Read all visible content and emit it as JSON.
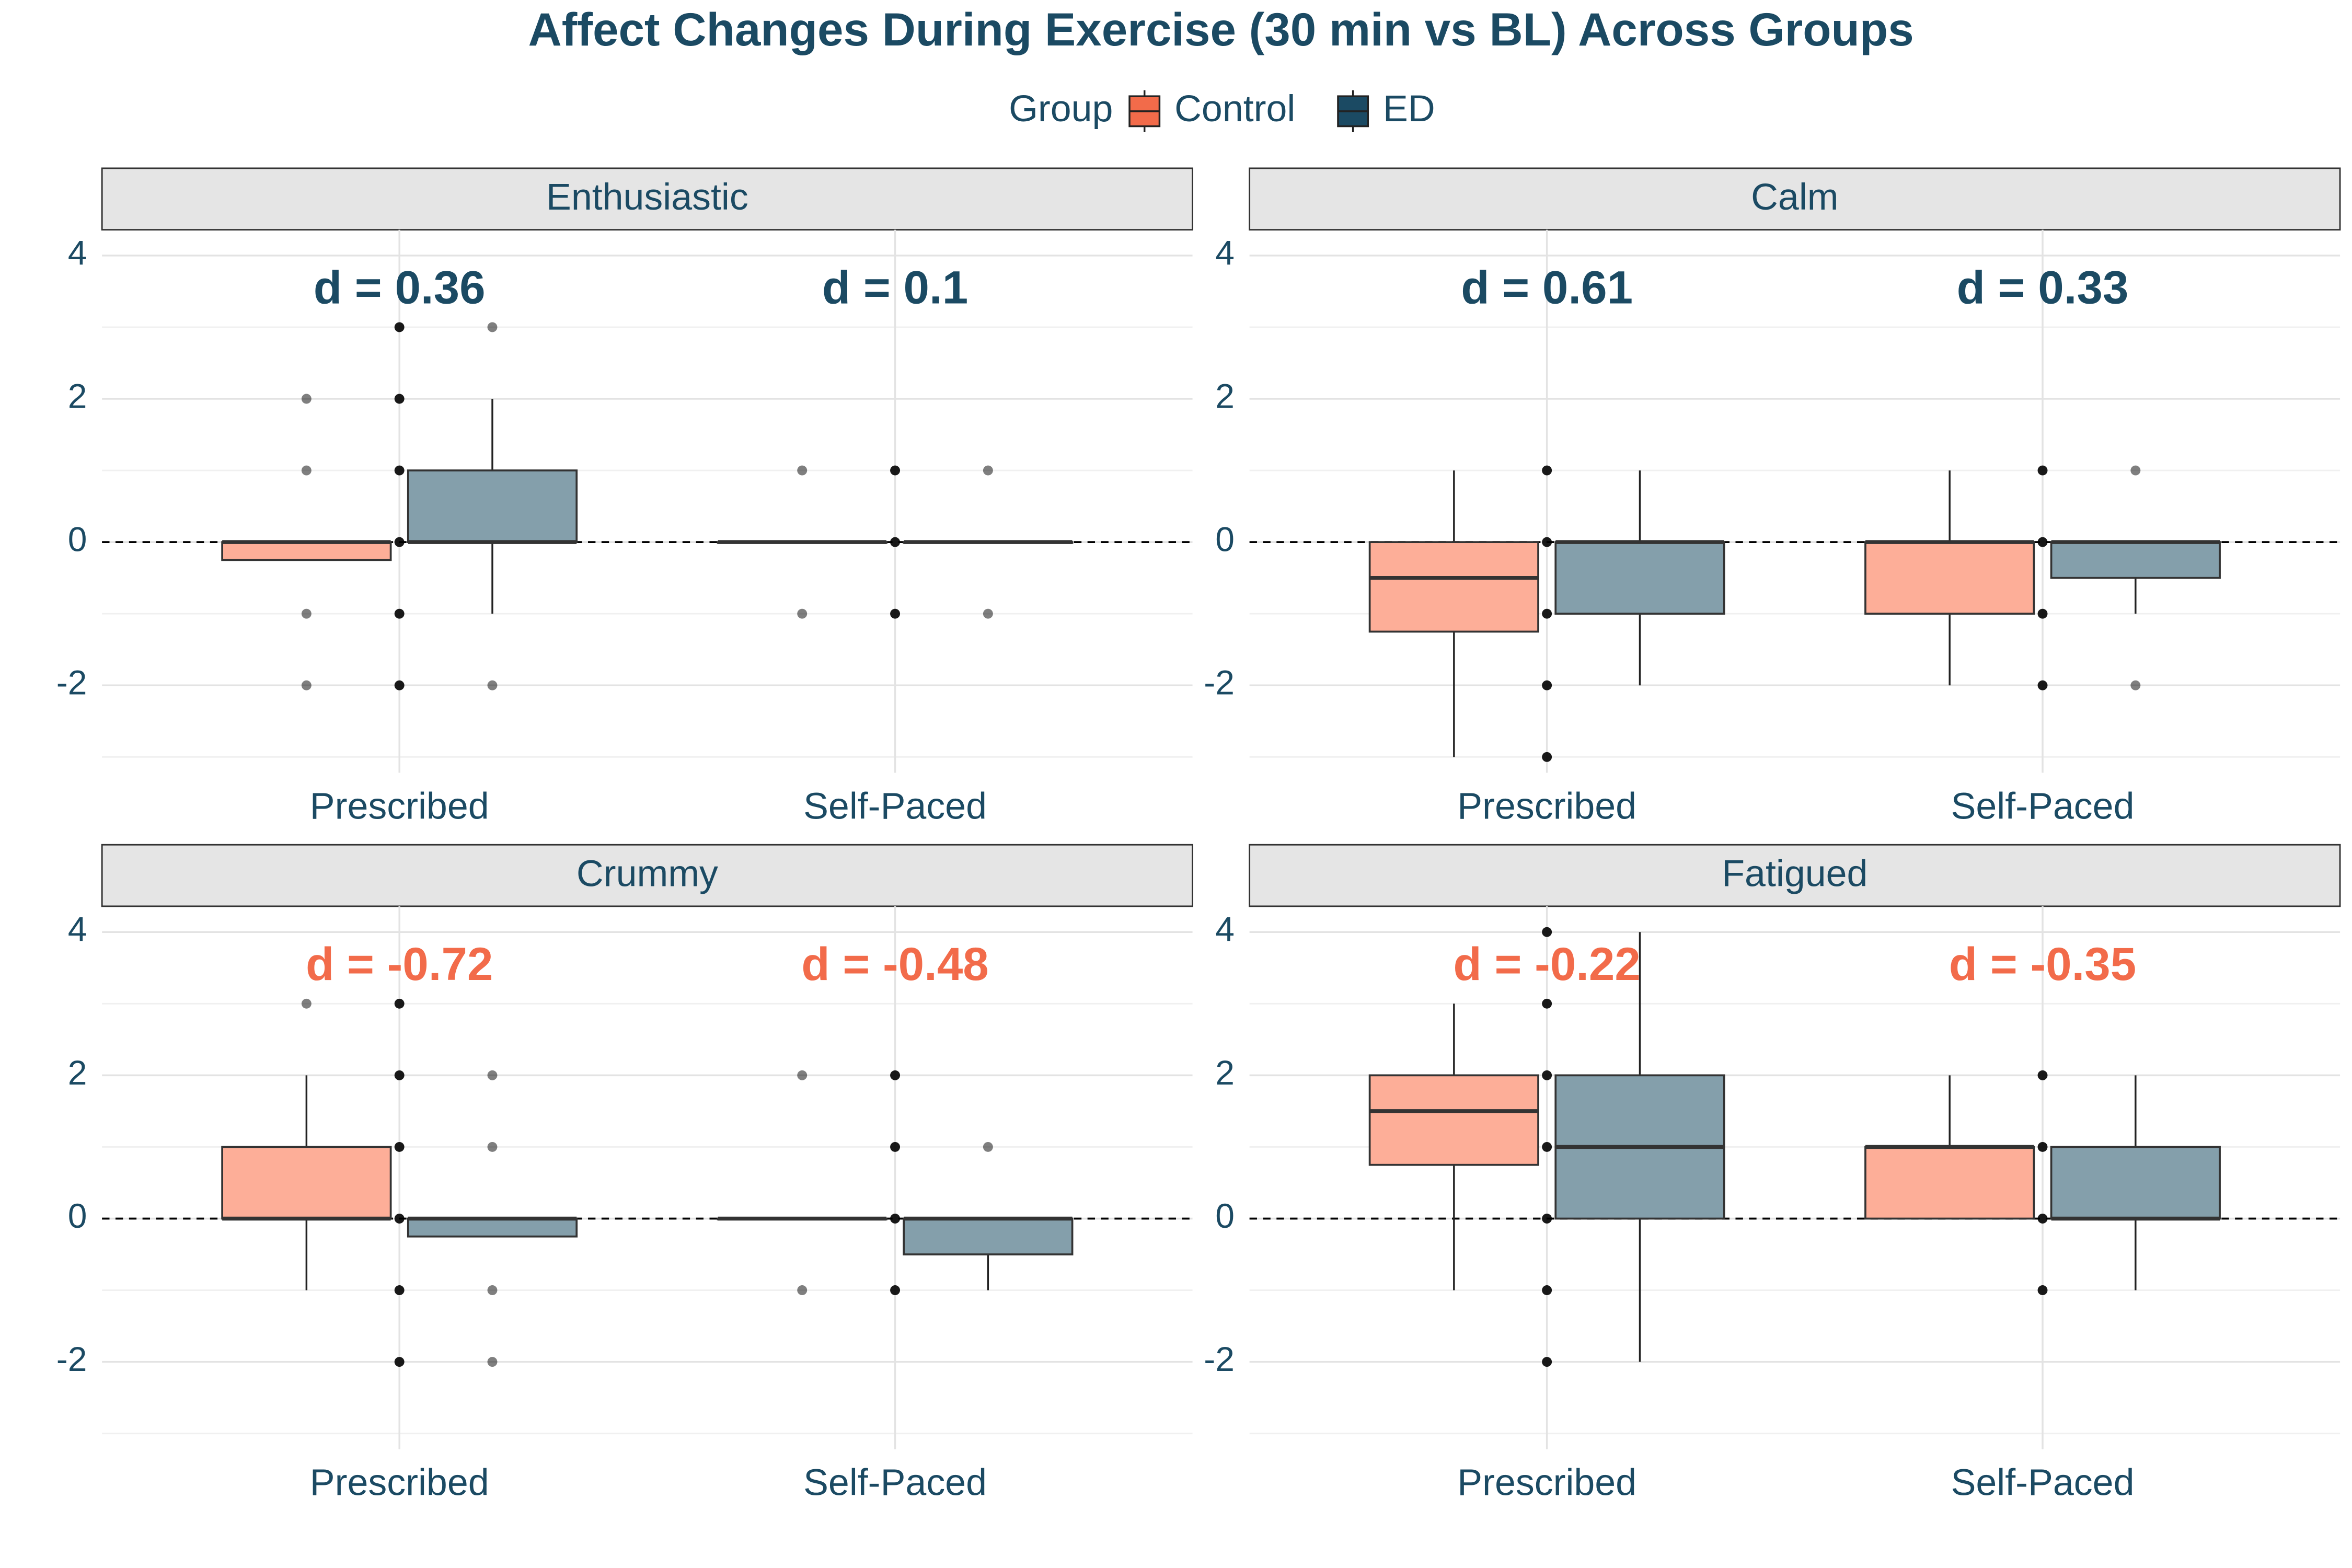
{
  "chart_data": {
    "type": "box",
    "title": "Affect Changes During Exercise (30 min vs BL) Across Groups",
    "legend_title": "Group",
    "series": [
      {
        "name": "Control",
        "color": "#f26b4a",
        "fill": "#fdae98"
      },
      {
        "name": "ED",
        "color": "#1b4a63",
        "fill": "#849fab"
      }
    ],
    "categories": [
      "Prescribed",
      "Self-Paced"
    ],
    "ylim": [
      -3.22,
      4.36
    ],
    "yticks": [
      -2,
      0,
      2,
      4
    ],
    "minor_yticks": [
      -3,
      -1,
      1,
      3
    ],
    "hline": 0,
    "grid": true,
    "facets": [
      {
        "title": "Enthusiastic",
        "annotations": [
          {
            "text": "d = 0.36",
            "color": "#1b4a63"
          },
          {
            "text": "d = 0.1",
            "color": "#1b4a63"
          }
        ],
        "boxes": [
          [
            {
              "q1": -0.25,
              "median": 0,
              "q3": 0,
              "whisker_low": -0.25,
              "whisker_high": 0,
              "points": [
                2,
                1,
                -1,
                -2
              ]
            },
            {
              "q1": 0,
              "median": 0,
              "q3": 1,
              "whisker_low": -1,
              "whisker_high": 2,
              "points": [
                3,
                -2
              ]
            }
          ],
          [
            {
              "q1": 0,
              "median": 0,
              "q3": 0,
              "whisker_low": 0,
              "whisker_high": 0,
              "points": [
                1,
                -1
              ]
            },
            {
              "q1": 0,
              "median": 0,
              "q3": 0,
              "whisker_low": 0,
              "whisker_high": 0,
              "points": [
                1,
                -1
              ]
            }
          ]
        ],
        "points": [
          [
            3,
            2,
            1,
            0,
            -1,
            -2
          ],
          [
            1,
            0,
            -1
          ]
        ]
      },
      {
        "title": "Calm",
        "annotations": [
          {
            "text": "d = 0.61",
            "color": "#1b4a63"
          },
          {
            "text": "d = 0.33",
            "color": "#1b4a63"
          }
        ],
        "boxes": [
          [
            {
              "q1": -1.25,
              "median": -0.5,
              "q3": 0,
              "whisker_low": -3,
              "whisker_high": 1,
              "points": []
            },
            {
              "q1": -1,
              "median": 0,
              "q3": 0,
              "whisker_low": -2,
              "whisker_high": 1,
              "points": []
            }
          ],
          [
            {
              "q1": -1,
              "median": 0,
              "q3": 0,
              "whisker_low": -2,
              "whisker_high": 1,
              "points": []
            },
            {
              "q1": -0.5,
              "median": 0,
              "q3": 0,
              "whisker_low": -1,
              "whisker_high": 0,
              "points": [
                1,
                -2
              ]
            }
          ]
        ],
        "points": [
          [
            1,
            0,
            -1,
            -2,
            -3
          ],
          [
            1,
            0,
            -1,
            -2
          ]
        ]
      },
      {
        "title": "Crummy",
        "annotations": [
          {
            "text": "d = -0.72",
            "color": "#f26b4a"
          },
          {
            "text": "d = -0.48",
            "color": "#f26b4a"
          }
        ],
        "boxes": [
          [
            {
              "q1": 0,
              "median": 0,
              "q3": 1,
              "whisker_low": -1,
              "whisker_high": 2,
              "points": [
                3
              ]
            },
            {
              "q1": -0.25,
              "median": 0,
              "q3": 0,
              "whisker_low": -0.25,
              "whisker_high": 0,
              "points": [
                2,
                1,
                -1,
                -2
              ]
            }
          ],
          [
            {
              "q1": 0,
              "median": 0,
              "q3": 0,
              "whisker_low": 0,
              "whisker_high": 0,
              "points": [
                2,
                -1
              ]
            },
            {
              "q1": -0.5,
              "median": 0,
              "q3": 0,
              "whisker_low": -1,
              "whisker_high": 0,
              "points": [
                1
              ]
            }
          ]
        ],
        "points": [
          [
            3,
            2,
            1,
            0,
            -1,
            -2
          ],
          [
            2,
            1,
            0,
            -1
          ]
        ]
      },
      {
        "title": "Fatigued",
        "annotations": [
          {
            "text": "d = -0.22",
            "color": "#f26b4a"
          },
          {
            "text": "d = -0.35",
            "color": "#f26b4a"
          }
        ],
        "boxes": [
          [
            {
              "q1": 0.75,
              "median": 1.5,
              "q3": 2,
              "whisker_low": -1,
              "whisker_high": 3,
              "points": []
            },
            {
              "q1": 0,
              "median": 1,
              "q3": 2,
              "whisker_low": -2,
              "whisker_high": 4,
              "points": []
            }
          ],
          [
            {
              "q1": 0,
              "median": 1,
              "q3": 1,
              "whisker_low": 0,
              "whisker_high": 2,
              "points": []
            },
            {
              "q1": 0,
              "median": 0,
              "q3": 1,
              "whisker_low": -1,
              "whisker_high": 2,
              "points": []
            }
          ]
        ],
        "points": [
          [
            4,
            3,
            2,
            1,
            0,
            -1,
            -2
          ],
          [
            2,
            1,
            0,
            -1
          ]
        ]
      }
    ]
  }
}
